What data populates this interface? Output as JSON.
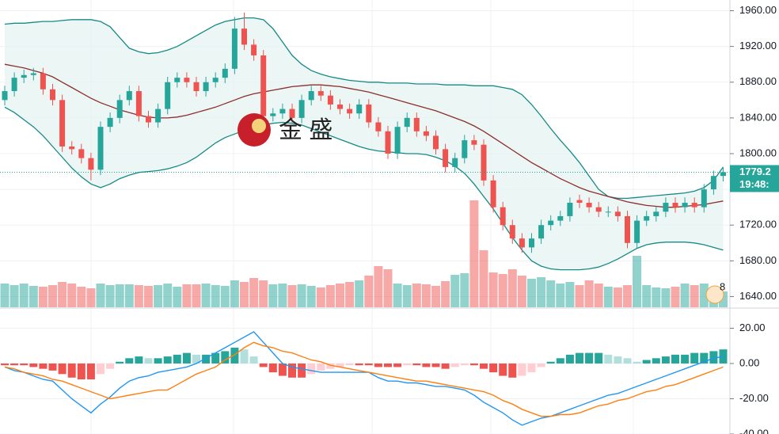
{
  "chart_data": [
    {
      "type": "candlestick",
      "up_color": "#26a69a",
      "down_color": "#ef5350",
      "ylim": [
        1628,
        1972
      ],
      "yticks": [
        {
          "value": 1960,
          "label": "1960.00"
        },
        {
          "value": 1920,
          "label": "1920.00"
        },
        {
          "value": 1880,
          "label": "1880.00"
        },
        {
          "value": 1840,
          "label": "1840.00"
        },
        {
          "value": 1800,
          "label": "1800.00"
        },
        {
          "value": 1760,
          "label": "1760.00"
        },
        {
          "value": 1720,
          "label": "1720.00"
        },
        {
          "value": 1680,
          "label": "1680.00"
        },
        {
          "value": 1640,
          "label": "1640.00"
        }
      ],
      "grid": true,
      "open": [
        1860,
        1870,
        1885,
        1888,
        1890,
        1872,
        1860,
        1808,
        1805,
        1795,
        1782,
        1830,
        1840,
        1860,
        1870,
        1842,
        1835,
        1850,
        1880,
        1885,
        1880,
        1870,
        1880,
        1885,
        1895,
        1940,
        1922,
        1910,
        1842,
        1845,
        1850,
        1840,
        1860,
        1870,
        1865,
        1855,
        1850,
        1845,
        1855,
        1835,
        1825,
        1800,
        1830,
        1840,
        1825,
        1820,
        1805,
        1785,
        1795,
        1815,
        1810,
        1770,
        1740,
        1720,
        1705,
        1695,
        1705,
        1720,
        1725,
        1730,
        1748,
        1745,
        1740,
        1735,
        1735,
        1730,
        1700,
        1725,
        1730,
        1735,
        1745,
        1740,
        1745,
        1740,
        1760,
        1775
      ],
      "high": [
        1876,
        1891,
        1894,
        1896,
        1896,
        1878,
        1866,
        1814,
        1811,
        1801,
        1836,
        1846,
        1866,
        1876,
        1876,
        1848,
        1856,
        1886,
        1891,
        1891,
        1886,
        1886,
        1891,
        1901,
        1953,
        1958,
        1928,
        1916,
        1851,
        1856,
        1856,
        1866,
        1876,
        1876,
        1871,
        1861,
        1856,
        1861,
        1861,
        1841,
        1831,
        1836,
        1846,
        1846,
        1831,
        1826,
        1811,
        1801,
        1821,
        1821,
        1816,
        1776,
        1746,
        1726,
        1711,
        1711,
        1726,
        1731,
        1736,
        1751,
        1754,
        1751,
        1746,
        1741,
        1741,
        1736,
        1731,
        1736,
        1741,
        1751,
        1751,
        1751,
        1751,
        1766,
        1781,
        1785
      ],
      "low": [
        1854,
        1864,
        1879,
        1882,
        1866,
        1854,
        1802,
        1799,
        1789,
        1770,
        1776,
        1824,
        1834,
        1854,
        1836,
        1829,
        1829,
        1844,
        1874,
        1874,
        1864,
        1864,
        1874,
        1879,
        1889,
        1916,
        1904,
        1836,
        1836,
        1839,
        1834,
        1834,
        1854,
        1859,
        1849,
        1844,
        1839,
        1839,
        1829,
        1819,
        1794,
        1794,
        1824,
        1819,
        1814,
        1799,
        1779,
        1779,
        1789,
        1804,
        1764,
        1734,
        1714,
        1699,
        1689,
        1689,
        1699,
        1714,
        1719,
        1724,
        1739,
        1734,
        1729,
        1729,
        1724,
        1694,
        1694,
        1719,
        1724,
        1729,
        1734,
        1734,
        1734,
        1734,
        1754,
        1769
      ],
      "close": [
        1870,
        1885,
        1888,
        1890,
        1872,
        1860,
        1808,
        1805,
        1795,
        1782,
        1830,
        1840,
        1860,
        1870,
        1842,
        1835,
        1850,
        1880,
        1885,
        1880,
        1870,
        1880,
        1885,
        1895,
        1940,
        1922,
        1910,
        1842,
        1845,
        1850,
        1840,
        1860,
        1870,
        1865,
        1855,
        1850,
        1845,
        1855,
        1835,
        1825,
        1800,
        1830,
        1840,
        1825,
        1820,
        1805,
        1785,
        1795,
        1815,
        1810,
        1770,
        1740,
        1720,
        1705,
        1695,
        1705,
        1720,
        1725,
        1730,
        1745,
        1745,
        1740,
        1735,
        1735,
        1730,
        1700,
        1725,
        1730,
        1735,
        1745,
        1740,
        1745,
        1740,
        1760,
        1775,
        1779.2
      ],
      "volume": [
        30,
        28,
        30,
        27,
        26,
        28,
        32,
        30,
        26,
        24,
        30,
        28,
        29,
        29,
        28,
        27,
        28,
        30,
        26,
        29,
        29,
        30,
        28,
        27,
        34,
        32,
        37,
        34,
        29,
        30,
        28,
        29,
        27,
        25,
        28,
        30,
        32,
        34,
        40,
        52,
        48,
        30,
        28,
        30,
        29,
        27,
        33,
        41,
        43,
        135,
        72,
        44,
        42,
        48,
        40,
        36,
        38,
        34,
        30,
        32,
        28,
        34,
        30,
        26,
        25,
        28,
        65,
        28,
        25,
        24,
        26,
        30,
        28,
        30,
        24,
        20
      ],
      "bands": [
        {
          "color": "#168a86",
          "values": [
            1945,
            1946,
            1946,
            1947,
            1948,
            1948,
            1949,
            1950,
            1950,
            1950,
            1948,
            1942,
            1930,
            1918,
            1914,
            1912,
            1913,
            1916,
            1920,
            1926,
            1932,
            1938,
            1944,
            1948,
            1950,
            1952,
            1952,
            1950,
            1940,
            1925,
            1910,
            1900,
            1893,
            1889,
            1886,
            1884,
            1882,
            1881,
            1880,
            1880,
            1879,
            1879,
            1879,
            1878,
            1878,
            1878,
            1877,
            1877,
            1877,
            1876,
            1876,
            1876,
            1874,
            1872,
            1866,
            1855,
            1842,
            1828,
            1815,
            1803,
            1790,
            1775,
            1760,
            1752,
            1750,
            1750,
            1751,
            1752,
            1753,
            1754,
            1755,
            1756,
            1758,
            1762,
            1770,
            1785
          ]
        },
        {
          "color": "#8c2f2f",
          "values": [
            1900,
            1898,
            1896,
            1893,
            1890,
            1886,
            1880,
            1874,
            1868,
            1862,
            1857,
            1853,
            1849,
            1846,
            1843,
            1841,
            1840,
            1840,
            1841,
            1843,
            1846,
            1849,
            1852,
            1856,
            1860,
            1864,
            1867,
            1869,
            1871,
            1873,
            1875,
            1876,
            1877,
            1877,
            1876,
            1875,
            1873,
            1871,
            1869,
            1866,
            1863,
            1860,
            1857,
            1854,
            1851,
            1848,
            1844,
            1840,
            1836,
            1831,
            1825,
            1818,
            1811,
            1804,
            1797,
            1790,
            1784,
            1778,
            1772,
            1767,
            1762,
            1758,
            1755,
            1752,
            1749,
            1746,
            1744,
            1742,
            1741,
            1740,
            1740,
            1741,
            1742,
            1743,
            1745,
            1747
          ]
        },
        {
          "color": "#168a86",
          "values": [
            1852,
            1846,
            1838,
            1830,
            1820,
            1808,
            1796,
            1784,
            1774,
            1766,
            1762,
            1766,
            1772,
            1776,
            1779,
            1780,
            1781,
            1783,
            1786,
            1790,
            1796,
            1804,
            1812,
            1818,
            1822,
            1826,
            1829,
            1832,
            1834,
            1835,
            1834,
            1832,
            1828,
            1824,
            1820,
            1816,
            1812,
            1808,
            1805,
            1803,
            1802,
            1801,
            1800,
            1800,
            1799,
            1796,
            1792,
            1786,
            1778,
            1766,
            1752,
            1738,
            1722,
            1706,
            1692,
            1680,
            1674,
            1671,
            1670,
            1670,
            1670,
            1671,
            1673,
            1677,
            1682,
            1688,
            1694,
            1698,
            1700,
            1701,
            1701,
            1701,
            1700,
            1698,
            1695,
            1692
          ]
        }
      ],
      "band_fill": "#e6f4f3",
      "last_time": "19:48:",
      "watermark": "金 盛",
      "badge": "8"
    },
    {
      "type": "macd",
      "ylim": [
        -40,
        31
      ],
      "yticks": [
        {
          "value": 20,
          "label": "20.00"
        },
        {
          "value": 0,
          "label": "0.00"
        },
        {
          "value": -20,
          "label": "-20.00"
        },
        {
          "value": -40,
          "label": "-40.00"
        }
      ],
      "histogram": [
        -1,
        -1,
        -1,
        -2,
        -3,
        -4,
        -6,
        -8,
        -9,
        -9,
        -6,
        -3,
        1,
        3,
        4,
        3,
        3,
        4,
        5,
        6,
        5,
        5,
        6,
        7,
        9,
        8,
        4,
        -2,
        -5,
        -7,
        -8,
        -8,
        -6,
        -4,
        -3,
        -2,
        -1,
        -1,
        -1,
        -2,
        -2,
        -2,
        -1,
        -1,
        -2,
        -2,
        -3,
        -2,
        -1,
        -1,
        -3,
        -5,
        -7,
        -8,
        -7,
        -5,
        -2,
        1,
        3,
        5,
        6,
        6,
        6,
        5,
        4,
        3,
        1,
        2,
        3,
        4,
        5,
        5,
        6,
        6,
        7,
        8
      ],
      "series": [
        {
          "color": "#2196f3",
          "values": [
            -2,
            -4,
            -5,
            -7,
            -9,
            -10,
            -15,
            -20,
            -24,
            -28,
            -23,
            -19,
            -14,
            -10,
            -8,
            -7,
            -5,
            -4,
            -3,
            -2,
            0,
            3,
            6,
            9,
            12,
            15,
            18,
            12,
            6,
            0,
            -2,
            -3,
            -4,
            -5,
            -5,
            -5,
            -5,
            -5,
            -5,
            -8,
            -10,
            -10,
            -11,
            -11,
            -12,
            -13,
            -13,
            -14,
            -15,
            -18,
            -22,
            -25,
            -28,
            -32,
            -35,
            -33,
            -31,
            -30,
            -28,
            -26,
            -24,
            -22,
            -20,
            -18,
            -17,
            -15,
            -13,
            -11,
            -9,
            -7,
            -5,
            -3,
            -1,
            1,
            3,
            4
          ]
        },
        {
          "color": "#ff7f0e",
          "values": [
            -2,
            -3,
            -5,
            -6,
            -7,
            -9,
            -10,
            -12,
            -14,
            -16,
            -18,
            -20,
            -19,
            -18,
            -17,
            -16,
            -15,
            -15,
            -12,
            -9,
            -6,
            -4,
            -2,
            2,
            5,
            9,
            12,
            10,
            9,
            7,
            6,
            4,
            2,
            1,
            -1,
            -2,
            -3,
            -4,
            -5,
            -6,
            -7,
            -8,
            -9,
            -10,
            -10,
            -11,
            -12,
            -13,
            -14,
            -15,
            -16,
            -18,
            -21,
            -23,
            -26,
            -28,
            -30,
            -30,
            -29,
            -29,
            -28,
            -26,
            -24,
            -23,
            -21,
            -20,
            -18,
            -16,
            -15,
            -13,
            -12,
            -10,
            -8,
            -6,
            -4,
            -2
          ]
        }
      ],
      "hist_colors": {
        "up_strong": "#26a69a",
        "up_weak": "#b2dfdb",
        "down_strong": "#ef5350",
        "down_weak": "#ffcdd2"
      }
    }
  ]
}
